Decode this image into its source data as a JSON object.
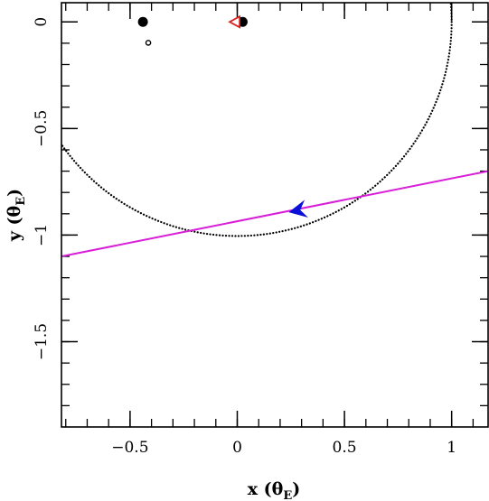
{
  "chart_data": {
    "type": "scatter",
    "title": "",
    "xlabel": {
      "main": "x (θ",
      "sub": "E",
      "close": ")"
    },
    "ylabel": {
      "main": "y (θ",
      "sub": "E",
      "close": ")"
    },
    "xlim": [
      -0.82,
      1.17
    ],
    "ylim": [
      -1.9,
      0.09
    ],
    "grid": false,
    "x_major_ticks": [
      -0.5,
      0,
      0.5,
      1
    ],
    "x_tick_labels": [
      "−0.5",
      "0",
      "0.5",
      "1"
    ],
    "y_major_ticks": [
      0,
      -0.5,
      -1,
      -1.5
    ],
    "y_tick_labels": [
      "0",
      "−0.5",
      "−1",
      "−1.5"
    ],
    "x_minor_step": 0.1,
    "y_minor_step": 0.1,
    "circle": {
      "center": [
        0,
        0
      ],
      "radius": 1,
      "style": "dotted",
      "color": "#000000"
    },
    "trajectory": {
      "p1": [
        -0.82,
        -1.1
      ],
      "p2": [
        1.17,
        -0.7
      ],
      "color": "#d81ed8"
    },
    "arrow": {
      "at": [
        0.24,
        -0.893
      ],
      "direction": "left",
      "color": "#0a10d8"
    },
    "points": [
      {
        "x": -0.44,
        "y": 0.0,
        "kind": "filled",
        "color": "#000000"
      },
      {
        "x": 0.025,
        "y": 0.0,
        "kind": "filled",
        "color": "#000000"
      },
      {
        "x": -0.415,
        "y": -0.098,
        "kind": "open",
        "color": "#000000"
      },
      {
        "x": -0.01,
        "y": 0.0,
        "kind": "triangle",
        "color": "#d82020"
      }
    ]
  }
}
